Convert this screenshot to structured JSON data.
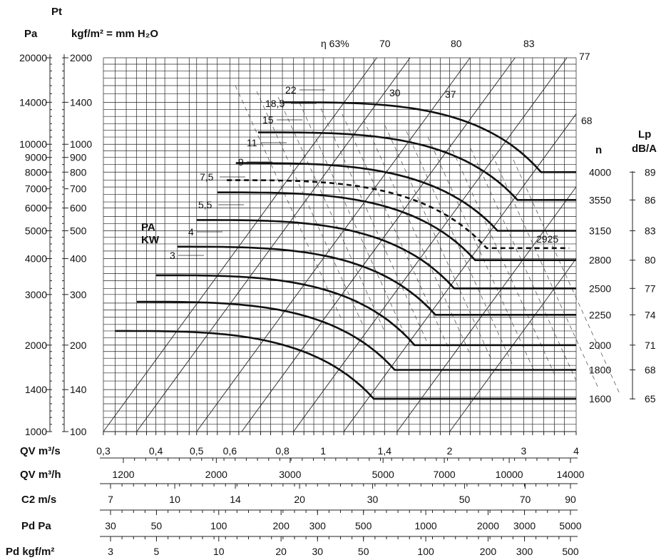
{
  "chart_data": {
    "type": "line",
    "pressure_axis": {
      "symbol": "Pt",
      "pa_label": "Pa",
      "pa_ticks": [
        "20000",
        "14000",
        "10000",
        "9000",
        "8000",
        "7000",
        "6000",
        "5000",
        "4000",
        "3000",
        "2000",
        "1400",
        "1000"
      ],
      "pa_values": [
        20000,
        14000,
        10000,
        9000,
        8000,
        7000,
        6000,
        5000,
        4000,
        3000,
        2000,
        1400,
        1000
      ],
      "kgf_label": "kgf/m² = mm H₂O",
      "kgf_ticks": [
        "2000",
        "1400",
        "1000",
        "900",
        "800",
        "700",
        "600",
        "500",
        "400",
        "300",
        "200",
        "140",
        "100"
      ],
      "kgf_values": [
        2000,
        1400,
        1000,
        900,
        800,
        700,
        600,
        500,
        400,
        300,
        200,
        140,
        100
      ],
      "ylim": [
        100,
        2000
      ],
      "scale": "log"
    },
    "flow_axis": {
      "label": "QV m³/s",
      "ticks": [
        "0,3",
        "0,4",
        "0,5",
        "0,6",
        "0,8",
        "1",
        "1,4",
        "2",
        "3",
        "4"
      ],
      "values": [
        0.3,
        0.4,
        0.5,
        0.6,
        0.8,
        1,
        1.4,
        2,
        3,
        4
      ],
      "xlim": [
        0.3,
        4
      ],
      "scale": "log"
    },
    "secondary_axes": [
      {
        "label": "QV m³/h",
        "ticks": [
          "1200",
          "2000",
          "3000",
          "5000",
          "7000",
          "10000",
          "14000"
        ],
        "values": [
          1200,
          2000,
          3000,
          5000,
          7000,
          10000,
          14000
        ]
      },
      {
        "label": "C2 m/s",
        "ticks": [
          "7",
          "10",
          "14",
          "20",
          "30",
          "50",
          "70",
          "90"
        ],
        "values": [
          7,
          10,
          14,
          20,
          30,
          50,
          70,
          90
        ]
      },
      {
        "label": "Pd Pa",
        "ticks": [
          "30",
          "50",
          "100",
          "200",
          "300",
          "500",
          "1000",
          "2000",
          "3000",
          "5000"
        ],
        "values": [
          30,
          50,
          100,
          200,
          300,
          500,
          1000,
          2000,
          3000,
          5000
        ]
      },
      {
        "label": "Pd kgf/m²",
        "ticks": [
          "3",
          "5",
          "10",
          "20",
          "30",
          "50",
          "100",
          "200",
          "300",
          "500"
        ],
        "values": [
          3,
          5,
          10,
          20,
          30,
          50,
          100,
          200,
          300,
          500
        ]
      }
    ],
    "speed_axis": {
      "label": "n",
      "values": [
        "4000",
        "3550",
        "3150",
        "2800",
        "2500",
        "2250",
        "2000",
        "1800",
        "1600"
      ]
    },
    "noise_axis": {
      "label": "Lp",
      "unit": "dB/A",
      "values": [
        "89",
        "86",
        "83",
        "80",
        "77",
        "74",
        "71",
        "68",
        "65"
      ]
    },
    "efficiency_lines": {
      "labels": [
        "η 63%",
        "70",
        "80",
        "83",
        "77",
        "68"
      ]
    },
    "power_lines": {
      "title": "PA",
      "unit": "KW",
      "labels": [
        "3",
        "4",
        "5,5",
        "7,5",
        "9",
        "11",
        "15",
        "18,5",
        "22",
        "30",
        "37"
      ]
    },
    "series": [
      {
        "name": "4000",
        "pt_kgf_flat": 1400,
        "q_start": 0.8,
        "q_knee": 3.3,
        "pt_kgf_knee": 800,
        "q_end": 4.0
      },
      {
        "name": "3550",
        "pt_kgf_flat": 1100,
        "q_start": 0.7,
        "q_knee": 2.9,
        "pt_kgf_knee": 640,
        "q_end": 4.0
      },
      {
        "name": "3150",
        "pt_kgf_flat": 860,
        "q_start": 0.62,
        "q_knee": 2.6,
        "pt_kgf_knee": 500,
        "q_end": 4.0
      },
      {
        "name": "2800",
        "pt_kgf_flat": 680,
        "q_start": 0.56,
        "q_knee": 2.3,
        "pt_kgf_knee": 395,
        "q_end": 4.0
      },
      {
        "name": "2500",
        "pt_kgf_flat": 545,
        "q_start": 0.5,
        "q_knee": 2.05,
        "pt_kgf_knee": 315,
        "q_end": 4.0
      },
      {
        "name": "2250",
        "pt_kgf_flat": 440,
        "q_start": 0.45,
        "q_knee": 1.85,
        "pt_kgf_knee": 255,
        "q_end": 4.0
      },
      {
        "name": "2000",
        "pt_kgf_flat": 350,
        "q_start": 0.4,
        "q_knee": 1.65,
        "pt_kgf_knee": 200,
        "q_end": 4.0
      },
      {
        "name": "1800",
        "pt_kgf_flat": 283,
        "q_start": 0.36,
        "q_knee": 1.48,
        "pt_kgf_knee": 164,
        "q_end": 4.0
      },
      {
        "name": "1600",
        "pt_kgf_flat": 224,
        "q_start": 0.32,
        "q_knee": 1.32,
        "pt_kgf_knee": 130,
        "q_end": 4.0
      }
    ],
    "dashed_series": {
      "name": "2925",
      "pt_kgf_flat": 750,
      "q_start": 0.59,
      "q_knee": 2.45,
      "pt_kgf_knee": 435,
      "q_end": 3.85
    },
    "grid": true,
    "title": "",
    "xlabel": "QV m³/s",
    "ylabel": "Pt"
  }
}
